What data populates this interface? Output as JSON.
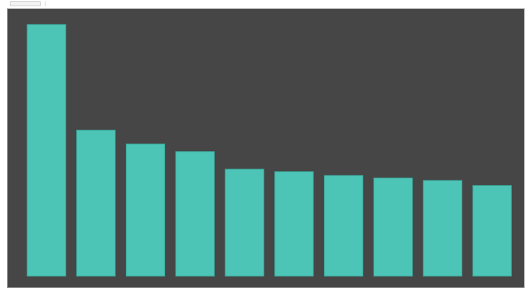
{
  "toolbar": {
    "tab_label": "",
    "label": ""
  },
  "colors": {
    "background": "#464646",
    "bar": "#4cc4b6",
    "bar_stroke": "#3aa598",
    "label": "#d9d9d9"
  },
  "chart_data": {
    "type": "bar",
    "categories": [
      "",
      "",
      "",
      "",
      "",
      "",
      "",
      "",
      "",
      ""
    ],
    "values": [
      100,
      58,
      52.5,
      49.5,
      42.5,
      41.5,
      40,
      39,
      38,
      36
    ],
    "data_labels": [
      "",
      "",
      "",
      "",
      "",
      "",
      "",
      "",
      "",
      ""
    ],
    "ylim": [
      0,
      100
    ],
    "grid": false,
    "legend": "none"
  }
}
